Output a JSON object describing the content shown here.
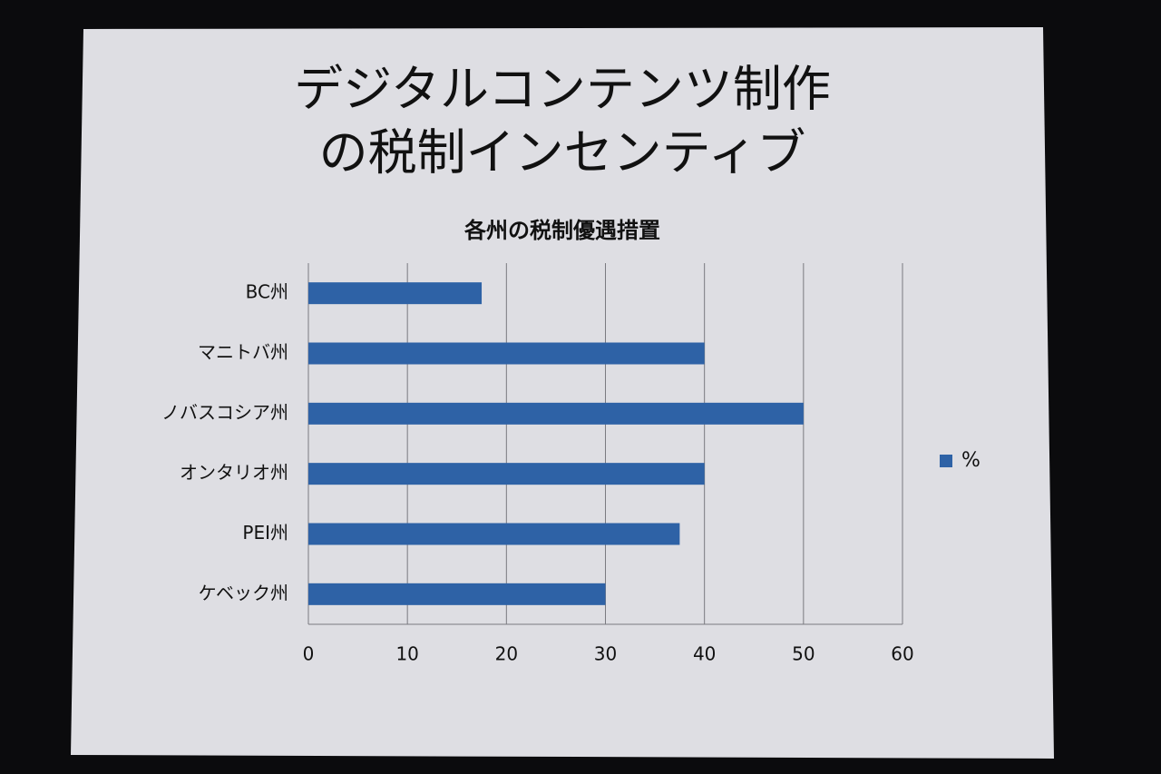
{
  "slide": {
    "title_lines": [
      "デジタルコンテンツ制作",
      "の税制インセンティブ"
    ]
  },
  "chart_data": {
    "type": "bar",
    "orientation": "horizontal",
    "title": "各州の税制優遇措置",
    "categories": [
      "BC州",
      "マニトバ州",
      "ノバスコシア州",
      "オンタリオ州",
      "PEI州",
      "ケベック州"
    ],
    "series": [
      {
        "name": "%",
        "color": "#2e62a6",
        "values": [
          17.5,
          40,
          50,
          40,
          37.5,
          30
        ]
      }
    ],
    "xlim": [
      0,
      60
    ],
    "xticks": [
      0,
      10,
      20,
      30,
      40,
      50,
      60
    ],
    "grid": true,
    "legend": "right"
  }
}
